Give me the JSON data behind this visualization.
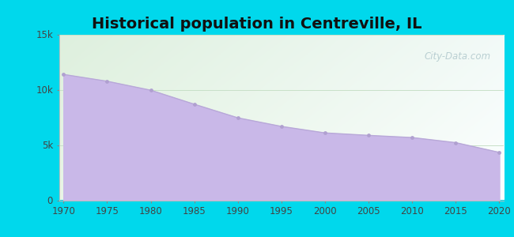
{
  "title": "Historical population in Centreville, IL",
  "years": [
    1970,
    1975,
    1980,
    1985,
    1990,
    1995,
    2000,
    2005,
    2010,
    2015,
    2020
  ],
  "population": [
    11378,
    10762,
    9952,
    8684,
    7454,
    6677,
    6090,
    5868,
    5670,
    5210,
    4326
  ],
  "ylim": [
    0,
    15000
  ],
  "yticks": [
    0,
    5000,
    10000,
    15000
  ],
  "ytick_labels": [
    "0",
    "5k",
    "10k",
    "15k"
  ],
  "xticks": [
    1970,
    1975,
    1980,
    1985,
    1990,
    1995,
    2000,
    2005,
    2010,
    2015,
    2020
  ],
  "fill_color": "#c9b8e8",
  "line_color": "#b8a8d8",
  "dot_color": "#b0a0d0",
  "bg_outer": "#00d8ec",
  "bg_plot_topleft": "#dff0df",
  "bg_plot_right": "#f0fafc",
  "title_fontsize": 14,
  "title_fontweight": "bold",
  "watermark_text": "City-Data.com",
  "watermark_color": "#b0c8cc",
  "grid_color": "#c8e0c8",
  "grid_linewidth": 0.7,
  "tick_label_color": "#444444",
  "tick_label_fontsize": 8.5,
  "xlim_left": 1969.5,
  "xlim_right": 2020.5
}
